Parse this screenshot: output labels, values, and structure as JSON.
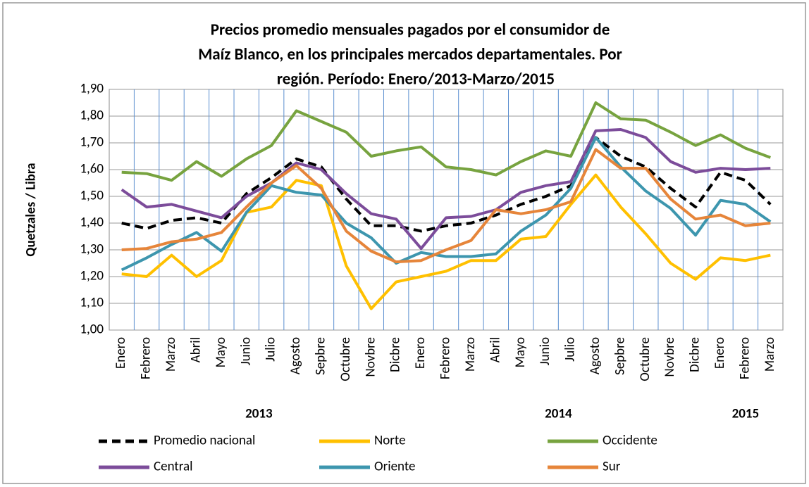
{
  "chart_data": {
    "type": "line",
    "title": [
      "Precios promedio mensuales pagados por el consumidor de",
      "Maíz Blanco, en los principales mercados departamentales. Por",
      "región. Período: Enero/2013-Marzo/2015"
    ],
    "y_label": "Quetzales / Libra",
    "groups": [
      {
        "name": "2013",
        "categories": [
          "Enero",
          "Febrero",
          "Marzo",
          "Abril",
          "Mayo",
          "Junio",
          "Julio",
          "Agosto",
          "Sepbre",
          "Octubre",
          "Novbre",
          "Dicbre"
        ]
      },
      {
        "name": "2014",
        "categories": [
          "Enero",
          "Febrero",
          "Marzo",
          "Abril",
          "Mayo",
          "Junio",
          "Julio",
          "Agosto",
          "Sepbre",
          "Octubre",
          "Novbre",
          "Dicbre"
        ]
      },
      {
        "name": "2015",
        "categories": [
          "Enero",
          "Febrero",
          "Marzo"
        ]
      }
    ],
    "ylim": [
      1.0,
      1.9
    ],
    "yticks": [
      {
        "value": 1.0,
        "label": "1,00"
      },
      {
        "value": 1.1,
        "label": "1,10"
      },
      {
        "value": 1.2,
        "label": "1,20"
      },
      {
        "value": 1.3,
        "label": "1,30"
      },
      {
        "value": 1.4,
        "label": "1,40"
      },
      {
        "value": 1.5,
        "label": "1,50"
      },
      {
        "value": 1.6,
        "label": "1,60"
      },
      {
        "value": 1.7,
        "label": "1,70"
      },
      {
        "value": 1.8,
        "label": "1,80"
      },
      {
        "value": 1.9,
        "label": "1,90"
      }
    ],
    "grid": true,
    "series": [
      {
        "name": "Promedio nacional",
        "color": "#000000",
        "style": "dashed",
        "values": [
          1.4,
          1.38,
          1.41,
          1.42,
          1.4,
          1.51,
          1.57,
          1.64,
          1.61,
          1.49,
          1.39,
          1.39,
          1.37,
          1.39,
          1.4,
          1.43,
          1.47,
          1.5,
          1.54,
          1.72,
          1.65,
          1.61,
          1.53,
          1.46,
          1.59,
          1.56,
          1.47
        ]
      },
      {
        "name": "Norte",
        "color": "#ffc000",
        "style": "solid",
        "values": [
          1.21,
          1.2,
          1.28,
          1.2,
          1.26,
          1.44,
          1.46,
          1.56,
          1.54,
          1.24,
          1.08,
          1.18,
          1.2,
          1.22,
          1.26,
          1.26,
          1.34,
          1.35,
          1.47,
          1.58,
          1.46,
          1.36,
          1.25,
          1.19,
          1.27,
          1.26,
          1.28
        ]
      },
      {
        "name": "Occidente",
        "color": "#77a33f",
        "style": "solid",
        "values": [
          1.59,
          1.585,
          1.56,
          1.63,
          1.575,
          1.64,
          1.69,
          1.82,
          1.78,
          1.74,
          1.65,
          1.67,
          1.685,
          1.61,
          1.6,
          1.58,
          1.63,
          1.67,
          1.65,
          1.85,
          1.79,
          1.785,
          1.74,
          1.69,
          1.73,
          1.68,
          1.645
        ]
      },
      {
        "name": "Central",
        "color": "#7c4c9a",
        "style": "solid",
        "values": [
          1.525,
          1.46,
          1.47,
          1.445,
          1.42,
          1.5,
          1.55,
          1.625,
          1.6,
          1.51,
          1.435,
          1.415,
          1.305,
          1.42,
          1.425,
          1.45,
          1.515,
          1.54,
          1.555,
          1.745,
          1.75,
          1.72,
          1.63,
          1.59,
          1.605,
          1.6,
          1.605
        ]
      },
      {
        "name": "Oriente",
        "color": "#3d96ae",
        "style": "solid",
        "values": [
          1.225,
          1.27,
          1.32,
          1.365,
          1.295,
          1.44,
          1.54,
          1.515,
          1.505,
          1.4,
          1.345,
          1.25,
          1.29,
          1.275,
          1.275,
          1.285,
          1.37,
          1.43,
          1.53,
          1.72,
          1.61,
          1.52,
          1.455,
          1.355,
          1.485,
          1.47,
          1.405
        ]
      },
      {
        "name": "Sur",
        "color": "#e6853a",
        "style": "solid",
        "values": [
          1.3,
          1.305,
          1.33,
          1.34,
          1.365,
          1.46,
          1.55,
          1.615,
          1.53,
          1.37,
          1.295,
          1.255,
          1.26,
          1.3,
          1.335,
          1.45,
          1.435,
          1.45,
          1.48,
          1.675,
          1.605,
          1.605,
          1.49,
          1.415,
          1.43,
          1.39,
          1.4
        ]
      }
    ]
  }
}
